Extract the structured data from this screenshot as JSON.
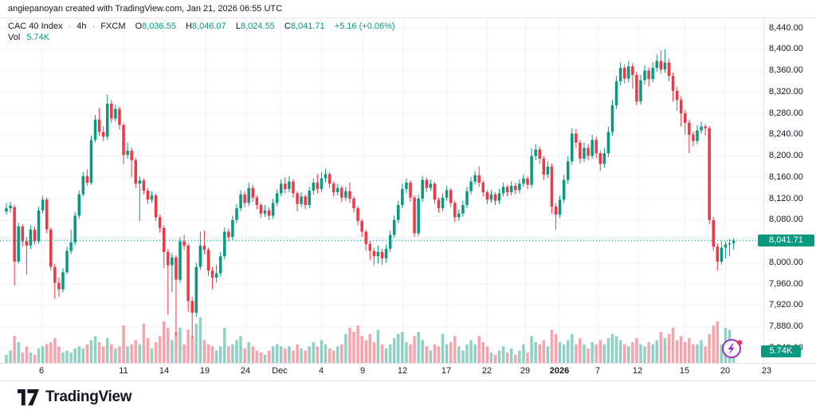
{
  "attribution": "angiepanoyan created with TradingView.com, Jan 21, 2026 06:55 UTC",
  "legend": {
    "symbol": "CAC 40 Index",
    "dot": "·",
    "interval": "4h",
    "exchange": "FXCM",
    "o_label": "O",
    "h_label": "H",
    "l_label": "L",
    "c_label": "C",
    "ohlc": {
      "o": "8,036.55",
      "h": "8,046.07",
      "l": "8,024.55",
      "c": "8,041.71"
    },
    "change": "+5.16 (+0.06%)",
    "vol_label": "Vol",
    "vol_value": "5.74K"
  },
  "price_axis": {
    "current_price_label": "8,041.71",
    "volume_label": "5.74K"
  },
  "footer": {
    "brand": "TradingView"
  },
  "colors": {
    "background": "#ffffff",
    "text": "#131722",
    "grid": "#f0f3fa",
    "border": "#e0e3eb",
    "up": "#089981",
    "down": "#f23645",
    "vol_up": "rgba(8,153,129,0.45)",
    "vol_down": "rgba(242,54,69,0.45)",
    "badge": "#089981",
    "flash": "#a32cc4",
    "alert_dot": "#f23645"
  },
  "chart_data": {
    "type": "candlestick",
    "title": "CAC 40 Index · 4h · FXCM",
    "symbol": "CAC 40 Index",
    "interval": "4h",
    "exchange": "FXCM",
    "ylim": [
      7840,
      8460
    ],
    "grid": true,
    "legend_position": "top-left",
    "price_ticks": [
      8440,
      8400,
      8360,
      8320,
      8280,
      8240,
      8200,
      8160,
      8120,
      8080,
      8040,
      8000,
      7960,
      7920,
      7880,
      7840
    ],
    "time_ticks": [
      {
        "label": "6",
        "x": 52
      },
      {
        "label": "11",
        "x": 155
      },
      {
        "label": "14",
        "x": 206
      },
      {
        "label": "19",
        "x": 257
      },
      {
        "label": "24",
        "x": 308
      },
      {
        "label": "Dec",
        "x": 351
      },
      {
        "label": "4",
        "x": 403
      },
      {
        "label": "9",
        "x": 455
      },
      {
        "label": "12",
        "x": 505
      },
      {
        "label": "17",
        "x": 560
      },
      {
        "label": "22",
        "x": 611
      },
      {
        "label": "29",
        "x": 659
      },
      {
        "label": "2026",
        "x": 702,
        "bold": true
      },
      {
        "label": "7",
        "x": 750
      },
      {
        "label": "12",
        "x": 800
      },
      {
        "label": "15",
        "x": 859
      },
      {
        "label": "20",
        "x": 910
      },
      {
        "label": "23",
        "x": 962
      }
    ],
    "current_price": 8041.71,
    "current_volume_k": 5.74,
    "last_bar": {
      "open": 8036.55,
      "high": 8046.07,
      "low": 8024.55,
      "close": 8041.71,
      "change": "+5.16 (+0.06%)",
      "volume": "5.74K"
    },
    "candles": [
      [
        8096,
        8112,
        8090,
        8102
      ],
      [
        8102,
        8114,
        8094,
        8107
      ],
      [
        8104,
        8108,
        7957,
        8002
      ],
      [
        8002,
        8075,
        7998,
        8068
      ],
      [
        8068,
        8072,
        8030,
        8040
      ],
      [
        8040,
        8048,
        7977,
        8032
      ],
      [
        8032,
        8070,
        8025,
        8062
      ],
      [
        8062,
        8068,
        8034,
        8040
      ],
      [
        8040,
        8105,
        8036,
        8098
      ],
      [
        8098,
        8125,
        8092,
        8118
      ],
      [
        8118,
        8122,
        8055,
        8062
      ],
      [
        8062,
        8066,
        7985,
        7992
      ],
      [
        7992,
        7998,
        7932,
        7962
      ],
      [
        7962,
        7972,
        7936,
        7950
      ],
      [
        7950,
        7990,
        7944,
        7982
      ],
      [
        7982,
        8030,
        7978,
        8022
      ],
      [
        8022,
        8062,
        8016,
        8038
      ],
      [
        8038,
        8095,
        8032,
        8088
      ],
      [
        8088,
        8135,
        8082,
        8128
      ],
      [
        8128,
        8170,
        8124,
        8162
      ],
      [
        8162,
        8175,
        8144,
        8150
      ],
      [
        8150,
        8238,
        8146,
        8230
      ],
      [
        8230,
        8277,
        8225,
        8268
      ],
      [
        8268,
        8290,
        8238,
        8245
      ],
      [
        8245,
        8255,
        8228,
        8236
      ],
      [
        8236,
        8315,
        8230,
        8298
      ],
      [
        8298,
        8305,
        8262,
        8270
      ],
      [
        8270,
        8296,
        8264,
        8288
      ],
      [
        8288,
        8293,
        8250,
        8258
      ],
      [
        8258,
        8262,
        8185,
        8202
      ],
      [
        8202,
        8225,
        8195,
        8210
      ],
      [
        8210,
        8216,
        8160,
        8192
      ],
      [
        8192,
        8196,
        8140,
        8148
      ],
      [
        8148,
        8162,
        8078,
        8154
      ],
      [
        8154,
        8158,
        8128,
        8135
      ],
      [
        8135,
        8140,
        8110,
        8118
      ],
      [
        8118,
        8134,
        8112,
        8126
      ],
      [
        8126,
        8130,
        8078,
        8085
      ],
      [
        8085,
        8090,
        8056,
        8065
      ],
      [
        8065,
        8070,
        7990,
        8020
      ],
      [
        8020,
        8026,
        7902,
        7995
      ],
      [
        7995,
        8018,
        7945,
        8010
      ],
      [
        8010,
        8014,
        7862,
        7968
      ],
      [
        7968,
        8048,
        7962,
        8040
      ],
      [
        8040,
        8052,
        8024,
        8032
      ],
      [
        8032,
        8036,
        7908,
        7928
      ],
      [
        7928,
        7936,
        7858,
        7906
      ],
      [
        7906,
        8000,
        7898,
        7992
      ],
      [
        7992,
        8058,
        7986,
        8032
      ],
      [
        8032,
        8060,
        8016,
        8024
      ],
      [
        8024,
        8028,
        7975,
        7985
      ],
      [
        7985,
        7992,
        7950,
        7972
      ],
      [
        7972,
        7996,
        7962,
        7980
      ],
      [
        7980,
        8020,
        7974,
        8012
      ],
      [
        8012,
        8066,
        8006,
        8058
      ],
      [
        8058,
        8064,
        8040,
        8048
      ],
      [
        8048,
        8088,
        8042,
        8080
      ],
      [
        8080,
        8110,
        8074,
        8102
      ],
      [
        8102,
        8136,
        8096,
        8128
      ],
      [
        8128,
        8134,
        8104,
        8112
      ],
      [
        8112,
        8150,
        8106,
        8140
      ],
      [
        8140,
        8146,
        8114,
        8122
      ],
      [
        8122,
        8126,
        8100,
        8108
      ],
      [
        8108,
        8112,
        8084,
        8092
      ],
      [
        8092,
        8108,
        8086,
        8098
      ],
      [
        8098,
        8104,
        8080,
        8088
      ],
      [
        8088,
        8120,
        8082,
        8112
      ],
      [
        8112,
        8138,
        8106,
        8130
      ],
      [
        8130,
        8156,
        8124,
        8148
      ],
      [
        8148,
        8160,
        8130,
        8138
      ],
      [
        8138,
        8162,
        8132,
        8152
      ],
      [
        8152,
        8156,
        8122,
        8130
      ],
      [
        8130,
        8134,
        8096,
        8110
      ],
      [
        8110,
        8132,
        8104,
        8124
      ],
      [
        8124,
        8128,
        8100,
        8108
      ],
      [
        8108,
        8142,
        8102,
        8135
      ],
      [
        8135,
        8158,
        8128,
        8150
      ],
      [
        8150,
        8166,
        8130,
        8138
      ],
      [
        8138,
        8170,
        8132,
        8158
      ],
      [
        8158,
        8176,
        8150,
        8166
      ],
      [
        8166,
        8170,
        8140,
        8148
      ],
      [
        8148,
        8152,
        8124,
        8132
      ],
      [
        8132,
        8148,
        8126,
        8140
      ],
      [
        8140,
        8144,
        8114,
        8122
      ],
      [
        8122,
        8142,
        8116,
        8134
      ],
      [
        8134,
        8150,
        8112,
        8120
      ],
      [
        8120,
        8124,
        8094,
        8102
      ],
      [
        8102,
        8106,
        8070,
        8078
      ],
      [
        8078,
        8082,
        8048,
        8058
      ],
      [
        8058,
        8062,
        8022,
        8035
      ],
      [
        8035,
        8040,
        8005,
        8022
      ],
      [
        8022,
        8028,
        7995,
        8012
      ],
      [
        8012,
        8032,
        7998,
        8020
      ],
      [
        8020,
        8026,
        7996,
        8008
      ],
      [
        8008,
        8034,
        8000,
        8026
      ],
      [
        8026,
        8060,
        8020,
        8052
      ],
      [
        8052,
        8088,
        8046,
        8080
      ],
      [
        8080,
        8116,
        8074,
        8108
      ],
      [
        8108,
        8148,
        8102,
        8138
      ],
      [
        8138,
        8158,
        8130,
        8150
      ],
      [
        8150,
        8154,
        8114,
        8122
      ],
      [
        8122,
        8126,
        8048,
        8055
      ],
      [
        8055,
        8128,
        8050,
        8120
      ],
      [
        8120,
        8162,
        8114,
        8155
      ],
      [
        8155,
        8160,
        8132,
        8140
      ],
      [
        8140,
        8156,
        8134,
        8148
      ],
      [
        8148,
        8152,
        8110,
        8118
      ],
      [
        8118,
        8122,
        8094,
        8102
      ],
      [
        8102,
        8130,
        8096,
        8122
      ],
      [
        8122,
        8144,
        8116,
        8136
      ],
      [
        8136,
        8140,
        8104,
        8112
      ],
      [
        8112,
        8116,
        8076,
        8085
      ],
      [
        8085,
        8100,
        8078,
        8092
      ],
      [
        8092,
        8116,
        8086,
        8108
      ],
      [
        8108,
        8142,
        8102,
        8134
      ],
      [
        8134,
        8160,
        8128,
        8152
      ],
      [
        8152,
        8172,
        8146,
        8164
      ],
      [
        8164,
        8180,
        8142,
        8150
      ],
      [
        8150,
        8154,
        8124,
        8132
      ],
      [
        8132,
        8136,
        8110,
        8118
      ],
      [
        8118,
        8136,
        8112,
        8128
      ],
      [
        8128,
        8132,
        8108,
        8116
      ],
      [
        8116,
        8138,
        8110,
        8130
      ],
      [
        8130,
        8150,
        8124,
        8142
      ],
      [
        8142,
        8146,
        8124,
        8132
      ],
      [
        8132,
        8152,
        8126,
        8144
      ],
      [
        8144,
        8150,
        8128,
        8136
      ],
      [
        8136,
        8156,
        8130,
        8148
      ],
      [
        8148,
        8166,
        8142,
        8158
      ],
      [
        8158,
        8162,
        8138,
        8146
      ],
      [
        8146,
        8215,
        8140,
        8200
      ],
      [
        8200,
        8222,
        8192,
        8212
      ],
      [
        8212,
        8218,
        8186,
        8195
      ],
      [
        8195,
        8200,
        8155,
        8165
      ],
      [
        8165,
        8190,
        8158,
        8180
      ],
      [
        8180,
        8186,
        8092,
        8105
      ],
      [
        8105,
        8112,
        8062,
        8090
      ],
      [
        8090,
        8126,
        8084,
        8118
      ],
      [
        8118,
        8165,
        8112,
        8155
      ],
      [
        8155,
        8200,
        8148,
        8190
      ],
      [
        8190,
        8252,
        8184,
        8242
      ],
      [
        8242,
        8250,
        8215,
        8225
      ],
      [
        8225,
        8230,
        8186,
        8195
      ],
      [
        8195,
        8225,
        8188,
        8215
      ],
      [
        8215,
        8222,
        8192,
        8200
      ],
      [
        8200,
        8240,
        8194,
        8230
      ],
      [
        8230,
        8236,
        8196,
        8205
      ],
      [
        8205,
        8210,
        8172,
        8185
      ],
      [
        8185,
        8215,
        8178,
        8205
      ],
      [
        8205,
        8255,
        8198,
        8245
      ],
      [
        8245,
        8305,
        8238,
        8295
      ],
      [
        8295,
        8350,
        8288,
        8340
      ],
      [
        8340,
        8375,
        8332,
        8365
      ],
      [
        8365,
        8372,
        8336,
        8345
      ],
      [
        8345,
        8378,
        8338,
        8368
      ],
      [
        8368,
        8374,
        8326,
        8352
      ],
      [
        8352,
        8358,
        8295,
        8302
      ],
      [
        8302,
        8352,
        8296,
        8342
      ],
      [
        8342,
        8370,
        8334,
        8360
      ],
      [
        8360,
        8366,
        8330,
        8344
      ],
      [
        8344,
        8376,
        8338,
        8365
      ],
      [
        8365,
        8390,
        8358,
        8378
      ],
      [
        8378,
        8398,
        8354,
        8362
      ],
      [
        8362,
        8400,
        8356,
        8375
      ],
      [
        8375,
        8382,
        8340,
        8350
      ],
      [
        8350,
        8356,
        8302,
        8322
      ],
      [
        8322,
        8330,
        8285,
        8305
      ],
      [
        8305,
        8312,
        8255,
        8280
      ],
      [
        8280,
        8286,
        8240,
        8262
      ],
      [
        8262,
        8268,
        8205,
        8240
      ],
      [
        8240,
        8246,
        8218,
        8228
      ],
      [
        8228,
        8258,
        8222,
        8248
      ],
      [
        8248,
        8264,
        8242,
        8255
      ],
      [
        8255,
        8260,
        8238,
        8252
      ],
      [
        8252,
        8256,
        8072,
        8080
      ],
      [
        8080,
        8086,
        8022,
        8030
      ],
      [
        8030,
        8036,
        7985,
        8002
      ],
      [
        8002,
        8040,
        7996,
        8028
      ],
      [
        8028,
        8040,
        8008,
        8034
      ],
      [
        8034,
        8044,
        8012,
        8036
      ],
      [
        8036.55,
        8046.07,
        8024.55,
        8041.71
      ]
    ],
    "volumes_k": [
      4,
      6,
      13,
      10,
      5,
      8,
      5,
      4,
      7,
      8,
      9,
      10,
      12,
      8,
      5,
      6,
      5,
      7,
      8,
      7,
      9,
      11,
      13,
      10,
      8,
      12,
      9,
      7,
      8,
      18,
      8,
      9,
      11,
      9,
      19,
      12,
      7,
      10,
      13,
      20,
      17,
      11,
      15,
      17,
      9,
      16,
      13,
      19,
      22,
      11,
      9,
      8,
      6,
      8,
      17,
      8,
      9,
      11,
      13,
      7,
      10,
      8,
      6,
      5,
      4,
      6,
      8,
      9,
      8,
      7,
      8,
      6,
      9,
      7,
      6,
      8,
      10,
      8,
      11,
      9,
      7,
      6,
      8,
      9,
      14,
      17,
      15,
      18,
      13,
      11,
      14,
      10,
      16,
      9,
      7,
      9,
      12,
      14,
      15,
      10,
      9,
      13,
      15,
      11,
      8,
      6,
      9,
      8,
      14,
      9,
      10,
      13,
      8,
      6,
      9,
      11,
      9,
      13,
      10,
      8,
      5,
      4,
      6,
      8,
      5,
      7,
      4,
      6,
      9,
      5,
      13,
      10,
      9,
      11,
      8,
      16,
      14,
      10,
      9,
      11,
      14,
      9,
      12,
      9,
      7,
      10,
      9,
      11,
      9,
      12,
      14,
      13,
      11,
      9,
      8,
      10,
      12,
      9,
      8,
      10,
      9,
      11,
      15,
      12,
      14,
      17,
      11,
      13,
      10,
      12,
      9,
      9,
      11,
      8,
      14,
      18,
      20,
      9,
      17,
      16,
      5.74
    ]
  }
}
